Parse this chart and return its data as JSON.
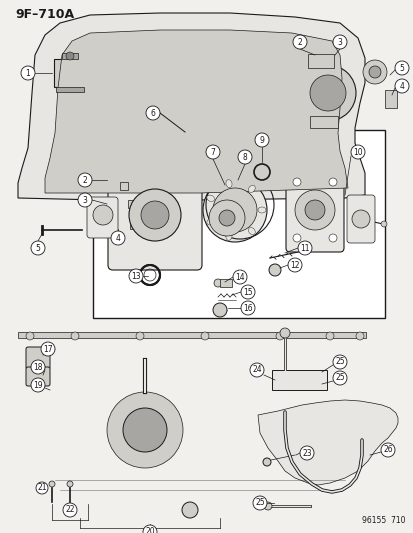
{
  "title": "9F–710A",
  "footer": "96155  710",
  "bg_color": "#f2f0ec",
  "line_color": "#1a1a1a",
  "white": "#ffffff",
  "gray_light": "#e8e6e2",
  "gray_mid": "#d0cec9",
  "gray_dark": "#a8a6a2"
}
